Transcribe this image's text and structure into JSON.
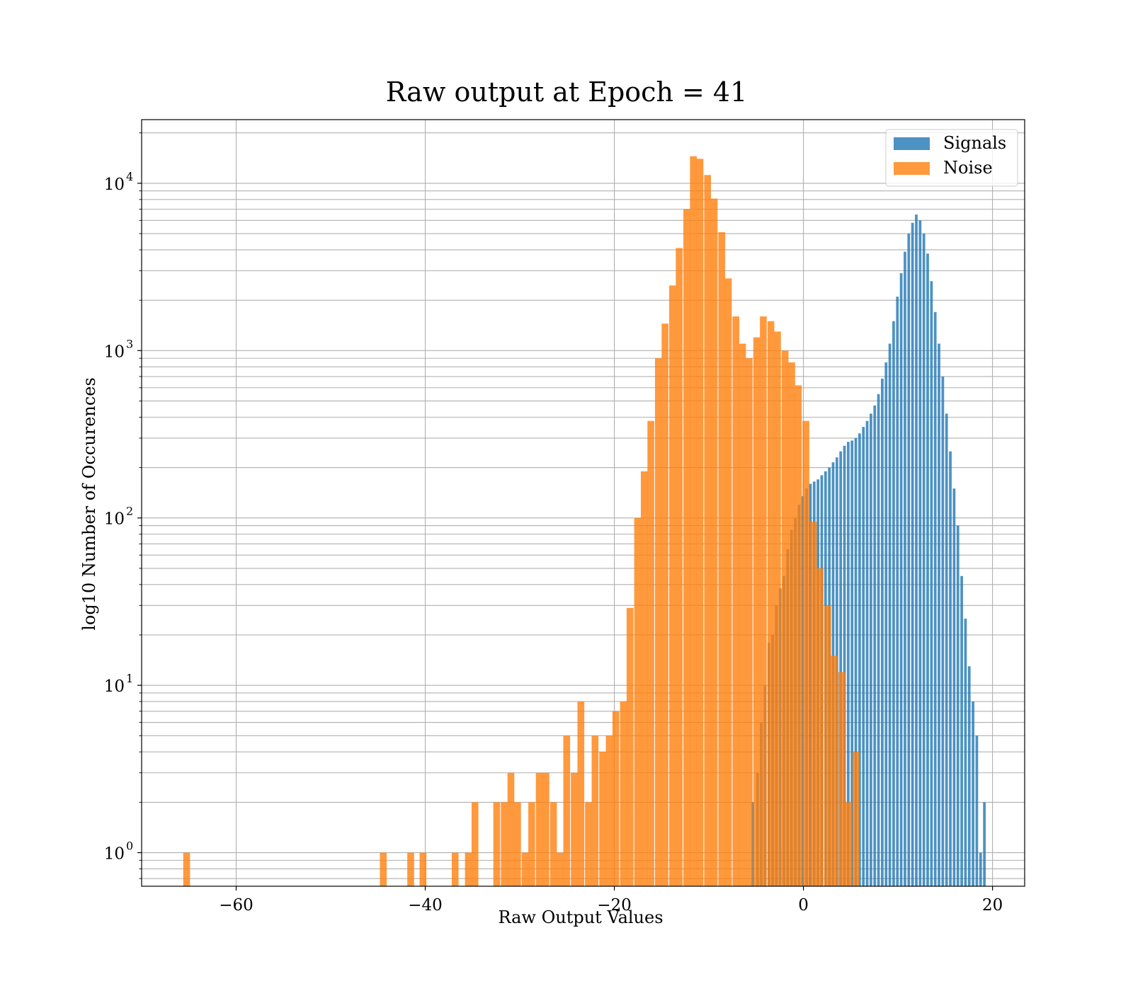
{
  "chart_data": {
    "type": "bar",
    "title": "Raw output at Epoch = 41",
    "xlabel": "Raw Output Values",
    "ylabel": "log10 Number of Occurences",
    "y_scale": "log",
    "xlim": [
      -70,
      23.4
    ],
    "ylim": [
      0.63,
      24000
    ],
    "x_ticks": [
      -60,
      -40,
      -20,
      0,
      20
    ],
    "x_tick_labels": [
      "−60",
      "−40",
      "−20",
      "0",
      "20"
    ],
    "y_ticks": [
      1,
      10,
      100,
      1000,
      10000
    ],
    "y_tick_labels": [
      {
        "base": "10",
        "exp": "0"
      },
      {
        "base": "10",
        "exp": "1"
      },
      {
        "base": "10",
        "exp": "2"
      },
      {
        "base": "10",
        "exp": "3"
      },
      {
        "base": "10",
        "exp": "4"
      }
    ],
    "grid": true,
    "legend_position": "top-right",
    "series": [
      {
        "name": "Signals",
        "color": "#1f77b4",
        "opacity": 0.8,
        "bin_width": 0.28,
        "bins": [
          [
            -5.5,
            2
          ],
          [
            -5.0,
            3
          ],
          [
            -4.6,
            6
          ],
          [
            -4.2,
            10
          ],
          [
            -3.8,
            18
          ],
          [
            -3.4,
            20
          ],
          [
            -3.0,
            30
          ],
          [
            -2.6,
            38
          ],
          [
            -2.2,
            45
          ],
          [
            -1.8,
            65
          ],
          [
            -1.4,
            85
          ],
          [
            -1.0,
            100
          ],
          [
            -0.6,
            120
          ],
          [
            -0.2,
            135
          ],
          [
            0.2,
            150
          ],
          [
            0.6,
            160
          ],
          [
            1.0,
            165
          ],
          [
            1.4,
            170
          ],
          [
            1.8,
            180
          ],
          [
            2.2,
            190
          ],
          [
            2.6,
            200
          ],
          [
            3.0,
            215
          ],
          [
            3.4,
            230
          ],
          [
            3.8,
            250
          ],
          [
            4.2,
            270
          ],
          [
            4.6,
            285
          ],
          [
            5.0,
            290
          ],
          [
            5.4,
            300
          ],
          [
            5.8,
            320
          ],
          [
            6.2,
            350
          ],
          [
            6.6,
            380
          ],
          [
            7.0,
            420
          ],
          [
            7.4,
            470
          ],
          [
            7.8,
            550
          ],
          [
            8.2,
            680
          ],
          [
            8.6,
            850
          ],
          [
            9.0,
            1100
          ],
          [
            9.4,
            1500
          ],
          [
            9.8,
            2100
          ],
          [
            10.2,
            2900
          ],
          [
            10.6,
            3900
          ],
          [
            11.0,
            5000
          ],
          [
            11.4,
            5800
          ],
          [
            11.8,
            6500
          ],
          [
            12.2,
            6000
          ],
          [
            12.6,
            5000
          ],
          [
            13.0,
            3800
          ],
          [
            13.4,
            2600
          ],
          [
            13.8,
            1700
          ],
          [
            14.2,
            1100
          ],
          [
            14.6,
            700
          ],
          [
            15.0,
            420
          ],
          [
            15.4,
            250
          ],
          [
            15.8,
            150
          ],
          [
            16.2,
            90
          ],
          [
            16.6,
            45
          ],
          [
            17.0,
            25
          ],
          [
            17.4,
            13
          ],
          [
            17.8,
            8
          ],
          [
            18.2,
            5
          ],
          [
            18.6,
            1
          ],
          [
            19.0,
            2
          ]
        ]
      },
      {
        "name": "Noise",
        "color": "#ff7f0e",
        "opacity": 0.8,
        "bin_width": 0.72,
        "bins": [
          [
            -65.6,
            1
          ],
          [
            -44.8,
            1
          ],
          [
            -41.9,
            1
          ],
          [
            -40.6,
            1
          ],
          [
            -37.2,
            1
          ],
          [
            -35.8,
            1
          ],
          [
            -35.1,
            2
          ],
          [
            -32.8,
            2
          ],
          [
            -32.0,
            2
          ],
          [
            -31.3,
            3
          ],
          [
            -30.6,
            2
          ],
          [
            -29.8,
            1
          ],
          [
            -29.1,
            2
          ],
          [
            -28.3,
            3
          ],
          [
            -27.6,
            3
          ],
          [
            -26.8,
            2
          ],
          [
            -26.1,
            1
          ],
          [
            -25.4,
            5
          ],
          [
            -24.6,
            3
          ],
          [
            -23.9,
            8
          ],
          [
            -23.1,
            2
          ],
          [
            -22.4,
            5
          ],
          [
            -21.6,
            4
          ],
          [
            -20.9,
            5
          ],
          [
            -20.2,
            7
          ],
          [
            -19.4,
            8
          ],
          [
            -18.7,
            29
          ],
          [
            -17.9,
            100
          ],
          [
            -17.2,
            190
          ],
          [
            -16.5,
            380
          ],
          [
            -15.7,
            900
          ],
          [
            -15.0,
            1450
          ],
          [
            -14.2,
            2450
          ],
          [
            -13.5,
            4100
          ],
          [
            -12.7,
            7000
          ],
          [
            -12.0,
            14500
          ],
          [
            -11.3,
            14000
          ],
          [
            -10.5,
            11200
          ],
          [
            -9.8,
            8100
          ],
          [
            -9.0,
            5100
          ],
          [
            -8.3,
            2700
          ],
          [
            -7.5,
            1600
          ],
          [
            -6.8,
            1100
          ],
          [
            -6.1,
            900
          ],
          [
            -5.3,
            1200
          ],
          [
            -4.6,
            1600
          ],
          [
            -3.8,
            1500
          ],
          [
            -3.1,
            1300
          ],
          [
            -2.3,
            1000
          ],
          [
            -1.6,
            850
          ],
          [
            -0.9,
            620
          ],
          [
            -0.1,
            380
          ],
          [
            0.7,
            95
          ],
          [
            1.4,
            50
          ],
          [
            2.2,
            30
          ],
          [
            2.9,
            15
          ],
          [
            3.7,
            12
          ],
          [
            4.4,
            2
          ],
          [
            5.2,
            4
          ]
        ]
      }
    ]
  }
}
